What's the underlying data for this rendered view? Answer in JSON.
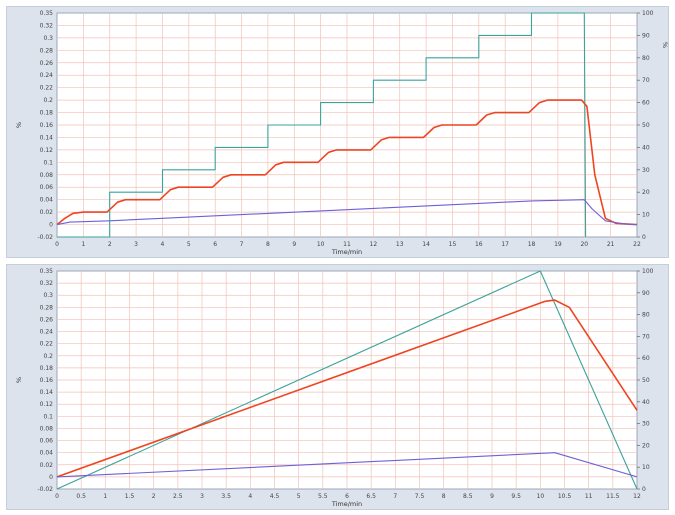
{
  "charts": [
    {
      "xlabel": "Time/min",
      "ylabel": "%",
      "y2label": "%",
      "xticks": [
        "0",
        "1",
        "2",
        "3",
        "4",
        "5",
        "6",
        "7",
        "8",
        "9",
        "10",
        "11",
        "12",
        "13",
        "14",
        "15",
        "16",
        "17",
        "18",
        "19",
        "20",
        "21",
        "22"
      ],
      "yticks": [
        "-0.02",
        "0",
        "0.02",
        "0.04",
        "0.06",
        "0.08",
        "0.1",
        "0.12",
        "0.14",
        "0.16",
        "0.18",
        "0.2",
        "0.22",
        "0.24",
        "0.26",
        "0.28",
        "0.3",
        "0.32",
        "0.35"
      ],
      "y2ticks": [
        "0",
        "10",
        "20",
        "30",
        "40",
        "50",
        "60",
        "70",
        "80",
        "90",
        "100"
      ]
    },
    {
      "xlabel": "Time/min",
      "ylabel": "%",
      "y2label": "",
      "xticks": [
        "0",
        "0.5",
        "1",
        "1.5",
        "2",
        "2.5",
        "3",
        "3.5",
        "4",
        "4.5",
        "5",
        "5.5",
        "6",
        "6.5",
        "7",
        "7.5",
        "8",
        "8.5",
        "9",
        "9.5",
        "10",
        "10.5",
        "11",
        "11.5",
        "12"
      ],
      "yticks": [
        "-0.02",
        "0",
        "0.02",
        "0.04",
        "0.06",
        "0.08",
        "0.1",
        "0.12",
        "0.14",
        "0.16",
        "0.18",
        "0.2",
        "0.22",
        "0.24",
        "0.26",
        "0.28",
        "0.3",
        "0.32",
        "0.35"
      ],
      "y2ticks": [
        "0",
        "10",
        "20",
        "30",
        "40",
        "50",
        "60",
        "70",
        "80",
        "90",
        "100"
      ]
    }
  ],
  "chart_data": [
    {
      "type": "line",
      "xlabel": "Time/min",
      "ylabel": "%",
      "xlim": [
        0,
        22
      ],
      "ylim": [
        -0.02,
        0.34
      ],
      "y2lim": [
        0,
        100
      ],
      "grid": true,
      "colors": {
        "red": "#ee4422",
        "teal": "#3aa39a",
        "purple": "#6f60d8",
        "grid": "#f1c2b8"
      },
      "series": [
        {
          "axis": "y2",
          "color": "#3aa39a",
          "x": [
            0,
            2,
            2,
            4,
            4,
            6,
            6,
            8,
            8,
            10,
            10,
            12,
            12,
            14,
            14,
            16,
            16,
            18,
            18,
            20,
            20,
            20.05
          ],
          "y": [
            0,
            0,
            20,
            20,
            30,
            30,
            40,
            40,
            50,
            50,
            60,
            60,
            70,
            70,
            80,
            80,
            90,
            90,
            100,
            100,
            100,
            0
          ]
        },
        {
          "axis": "y",
          "color": "#ee4422",
          "x": [
            0,
            0.3,
            0.6,
            1,
            1.9,
            2,
            2.3,
            2.6,
            3.9,
            4,
            4.3,
            4.6,
            5.9,
            6,
            6.3,
            6.6,
            7.9,
            8,
            8.3,
            8.6,
            9.9,
            10,
            10.3,
            10.6,
            11.9,
            12,
            12.3,
            12.6,
            13.9,
            14,
            14.3,
            14.6,
            15.9,
            16,
            16.3,
            16.6,
            17.9,
            18,
            18.3,
            18.6,
            19.9,
            20.1,
            20.4,
            20.8,
            21.2,
            22
          ],
          "y": [
            0,
            0.01,
            0.018,
            0.02,
            0.02,
            0.024,
            0.036,
            0.04,
            0.04,
            0.044,
            0.056,
            0.06,
            0.06,
            0.064,
            0.076,
            0.08,
            0.08,
            0.084,
            0.096,
            0.1,
            0.1,
            0.104,
            0.116,
            0.12,
            0.12,
            0.124,
            0.136,
            0.14,
            0.14,
            0.144,
            0.156,
            0.16,
            0.16,
            0.164,
            0.176,
            0.18,
            0.18,
            0.184,
            0.196,
            0.2,
            0.2,
            0.19,
            0.08,
            0.01,
            0.002,
            0.0
          ]
        },
        {
          "axis": "y",
          "color": "#6f60d8",
          "x": [
            0,
            0.5,
            2,
            4,
            6,
            8,
            10,
            12,
            14,
            16,
            18,
            20,
            20.3,
            20.8,
            21.5,
            22
          ],
          "y": [
            0,
            0.004,
            0.006,
            0.01,
            0.014,
            0.018,
            0.022,
            0.026,
            0.03,
            0.034,
            0.038,
            0.04,
            0.025,
            0.006,
            0.001,
            0.0
          ]
        }
      ]
    },
    {
      "type": "line",
      "xlabel": "Time/min",
      "ylabel": "%",
      "xlim": [
        0,
        12
      ],
      "ylim": [
        -0.02,
        0.34
      ],
      "y2lim": [
        0,
        100
      ],
      "grid": true,
      "colors": {
        "red": "#ee4422",
        "teal": "#3aa39a",
        "purple": "#6f60d8",
        "grid": "#f1c2b8"
      },
      "series": [
        {
          "axis": "y2",
          "color": "#3aa39a",
          "x": [
            0,
            10,
            12
          ],
          "y": [
            0,
            100,
            0
          ]
        },
        {
          "axis": "y",
          "color": "#ee4422",
          "x": [
            0,
            10.1,
            10.3,
            10.6,
            12
          ],
          "y": [
            0,
            0.29,
            0.292,
            0.28,
            0.11
          ]
        },
        {
          "axis": "y",
          "color": "#6f60d8",
          "x": [
            0,
            10.3,
            12
          ],
          "y": [
            0,
            0.04,
            0.0
          ]
        }
      ]
    }
  ]
}
